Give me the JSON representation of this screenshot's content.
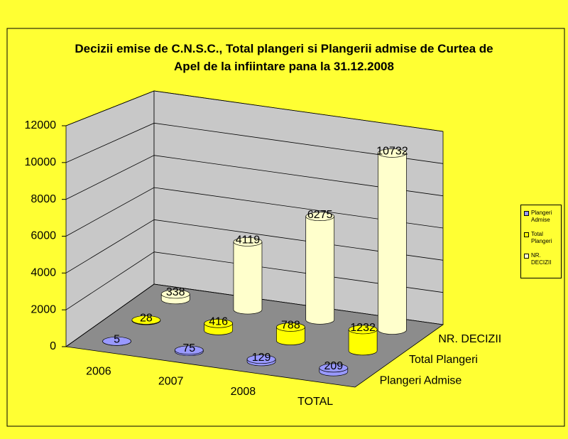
{
  "chart_data": {
    "type": "bar3d",
    "title": "Decizii emise de C.N.S.C., Total plangeri si Plangerii admise de Curtea de Apel de la infiintare pana la 31.12.2008",
    "categories": [
      "2006",
      "2007",
      "2008",
      "TOTAL"
    ],
    "series": [
      {
        "name": "Plangeri Admise",
        "color": "#9999ff",
        "values": [
          5,
          75,
          129,
          209
        ]
      },
      {
        "name": "Total Plangeri",
        "color": "#ffff00",
        "values": [
          28,
          416,
          788,
          1232
        ]
      },
      {
        "name": "NR. DECIZII",
        "color": "#ffffcc",
        "values": [
          338,
          4119,
          6275,
          10732
        ]
      }
    ],
    "ylim": [
      0,
      12000
    ],
    "yticks": [
      0,
      2000,
      4000,
      6000,
      8000,
      10000,
      12000
    ],
    "grid": true
  }
}
